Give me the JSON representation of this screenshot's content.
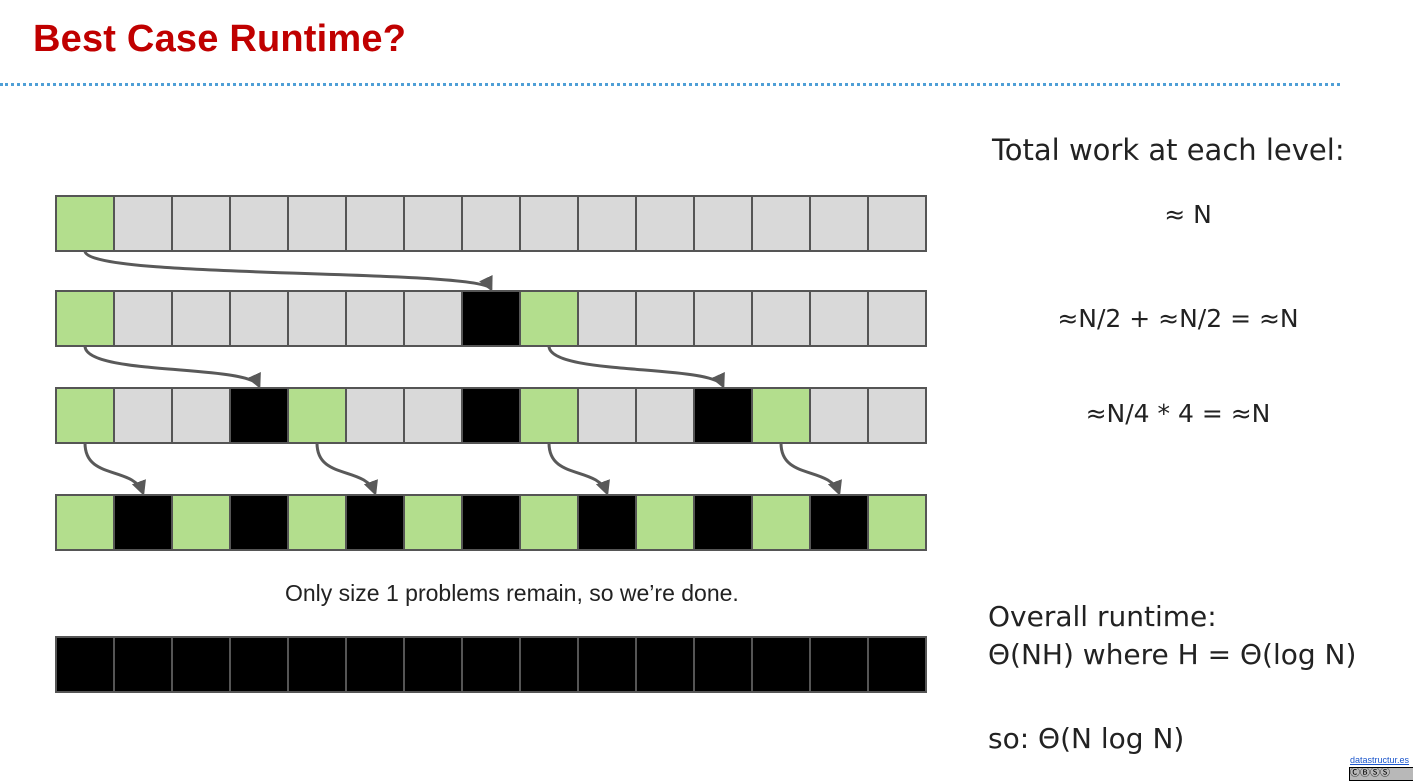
{
  "slide": {
    "title": "Best Case Runtime?",
    "caption": "Only size 1 problems remain, so we’re done."
  },
  "right_panel": {
    "heading": "Total work at each level:",
    "levels": [
      "≈ N",
      "≈N/2 + ≈N/2 = ≈N",
      "≈N/4 * 4 = ≈N"
    ],
    "overall_line1": "Overall runtime:",
    "overall_line2": "Θ(NH) where H = Θ(log N)",
    "final": "so: Θ(N log N)"
  },
  "footer": {
    "link_text": "datastructur.es",
    "license_icon": "cc-by-nc-sa-icon",
    "license_text": "ⒸⒷⓈⓈ"
  },
  "colors": {
    "title": "#c00000",
    "divider": "#4f9fd6",
    "pivot_green": "#b3de8d",
    "unsorted_gray": "#d9d9d9",
    "sorted_black": "#000000",
    "cell_border": "#555555",
    "arrow": "#595959"
  },
  "array": {
    "length": 15,
    "rows": [
      {
        "name": "level-0",
        "cells": "GSSSSSSSSSSSSSS"
      },
      {
        "name": "level-1",
        "cells": "GSSSSSSBGSSSSSS"
      },
      {
        "name": "level-2",
        "cells": "GSSBGSSBGSSBGSS"
      },
      {
        "name": "level-3",
        "cells": "GBGBGBGBGBGBGBG"
      },
      {
        "name": "done",
        "cells": "BBBBBBBBBBBBBBB"
      }
    ],
    "legend": {
      "G": "pivot",
      "S": "unsorted",
      "B": "in-final-position"
    },
    "arrows": [
      {
        "from_row": 0,
        "from_cell": 0,
        "to_row": 1,
        "to_cell": 7
      },
      {
        "from_row": 1,
        "from_cell": 0,
        "to_row": 2,
        "to_cell": 3
      },
      {
        "from_row": 1,
        "from_cell": 8,
        "to_row": 2,
        "to_cell": 11
      },
      {
        "from_row": 2,
        "from_cell": 0,
        "to_row": 3,
        "to_cell": 1
      },
      {
        "from_row": 2,
        "from_cell": 4,
        "to_row": 3,
        "to_cell": 5
      },
      {
        "from_row": 2,
        "from_cell": 8,
        "to_row": 3,
        "to_cell": 9
      },
      {
        "from_row": 2,
        "from_cell": 12,
        "to_row": 3,
        "to_cell": 13
      }
    ]
  }
}
